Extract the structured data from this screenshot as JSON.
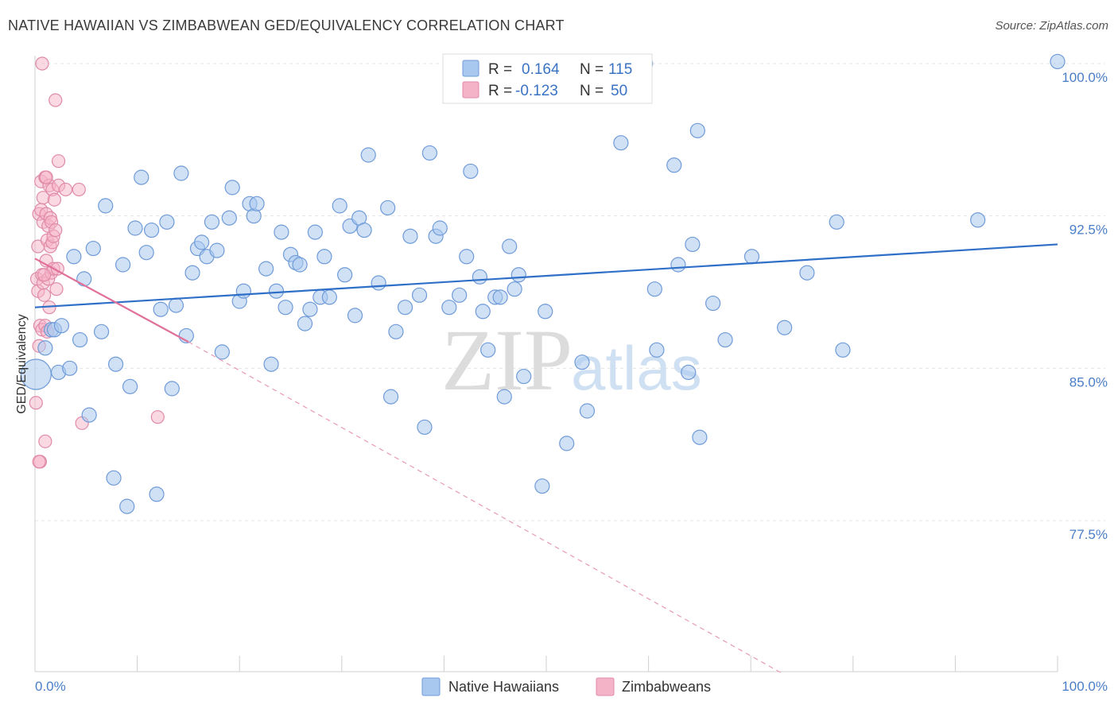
{
  "title": "NATIVE HAWAIIAN VS ZIMBABWEAN GED/EQUIVALENCY CORRELATION CHART",
  "source": "Source: ZipAtlas.com",
  "watermark": {
    "zip": "ZIP",
    "atlas": "atlas"
  },
  "legend": {
    "rows": [
      {
        "r_label": "R =",
        "r_value": "0.164",
        "n_label": "N =",
        "n_value": "115"
      },
      {
        "r_label": "R =",
        "r_value": "-0.123",
        "n_label": "N =",
        "n_value": "50"
      }
    ]
  },
  "colors": {
    "blue": "#2f6fc7",
    "blue_fill": "#a9c8ef",
    "pink": "#e0709a",
    "pink_fill": "#f5b3c8",
    "axis_text": "#4a7ec8"
  },
  "chart_data": {
    "type": "scatter",
    "xlabel": "",
    "ylabel": "GED/Equivalency",
    "xlim": [
      0,
      100
    ],
    "ylim": [
      70.0,
      101.0
    ],
    "x_tick_labels": [
      "0.0%",
      "100.0%"
    ],
    "y_ticks": [
      77.5,
      85.0,
      92.5,
      100.0
    ],
    "y_tick_labels": [
      "77.5%",
      "85.0%",
      "92.5%",
      "100.0%"
    ],
    "grid": "horizontal dashed",
    "legend_position": "top-center",
    "series": [
      {
        "name": "Native Hawaiians",
        "color": "#2f6fc7",
        "trend": {
          "x": [
            0,
            100
          ],
          "y": [
            88.0,
            91.1
          ]
        },
        "points": [
          [
            0.1,
            84.7
          ],
          [
            1.0,
            86.0
          ],
          [
            1.6,
            86.9
          ],
          [
            1.9,
            86.9
          ],
          [
            2.3,
            84.8
          ],
          [
            2.6,
            87.1
          ],
          [
            3.4,
            85.0
          ],
          [
            3.8,
            90.5
          ],
          [
            4.4,
            86.4
          ],
          [
            4.8,
            89.4
          ],
          [
            5.3,
            82.7
          ],
          [
            5.7,
            90.9
          ],
          [
            6.5,
            86.8
          ],
          [
            6.9,
            93.0
          ],
          [
            7.7,
            79.6
          ],
          [
            7.9,
            85.2
          ],
          [
            8.6,
            90.1
          ],
          [
            9.0,
            78.2
          ],
          [
            9.3,
            84.1
          ],
          [
            9.8,
            91.9
          ],
          [
            10.4,
            94.4
          ],
          [
            10.9,
            90.7
          ],
          [
            11.4,
            91.8
          ],
          [
            11.9,
            78.8
          ],
          [
            12.3,
            87.9
          ],
          [
            12.9,
            92.2
          ],
          [
            13.4,
            84.0
          ],
          [
            13.8,
            88.1
          ],
          [
            14.3,
            94.6
          ],
          [
            14.8,
            86.6
          ],
          [
            15.4,
            89.7
          ],
          [
            15.9,
            90.9
          ],
          [
            16.3,
            91.2
          ],
          [
            16.8,
            90.5
          ],
          [
            17.3,
            92.2
          ],
          [
            17.8,
            90.8
          ],
          [
            18.3,
            85.8
          ],
          [
            19.0,
            92.4
          ],
          [
            19.3,
            93.9
          ],
          [
            20.0,
            88.3
          ],
          [
            20.4,
            88.8
          ],
          [
            21.0,
            93.1
          ],
          [
            21.4,
            92.5
          ],
          [
            21.7,
            93.1
          ],
          [
            22.6,
            89.9
          ],
          [
            23.1,
            85.2
          ],
          [
            23.6,
            88.8
          ],
          [
            24.1,
            91.7
          ],
          [
            24.5,
            88.0
          ],
          [
            25.0,
            90.6
          ],
          [
            25.5,
            90.2
          ],
          [
            25.9,
            90.1
          ],
          [
            26.4,
            87.2
          ],
          [
            26.9,
            87.9
          ],
          [
            27.4,
            91.7
          ],
          [
            27.9,
            88.5
          ],
          [
            28.3,
            90.5
          ],
          [
            28.8,
            88.5
          ],
          [
            29.8,
            93.0
          ],
          [
            30.3,
            89.6
          ],
          [
            30.8,
            92.0
          ],
          [
            31.3,
            87.6
          ],
          [
            31.7,
            92.4
          ],
          [
            32.2,
            91.8
          ],
          [
            32.6,
            95.5
          ],
          [
            33.6,
            89.2
          ],
          [
            34.5,
            92.9
          ],
          [
            34.8,
            83.6
          ],
          [
            35.3,
            86.8
          ],
          [
            36.2,
            88.0
          ],
          [
            36.7,
            91.5
          ],
          [
            37.6,
            88.6
          ],
          [
            38.1,
            82.1
          ],
          [
            38.6,
            95.6
          ],
          [
            39.2,
            91.5
          ],
          [
            39.6,
            91.9
          ],
          [
            40.5,
            88.0
          ],
          [
            41.5,
            88.6
          ],
          [
            42.2,
            90.5
          ],
          [
            42.6,
            94.7
          ],
          [
            43.5,
            89.5
          ],
          [
            43.8,
            87.8
          ],
          [
            44.3,
            85.9
          ],
          [
            45.0,
            88.5
          ],
          [
            45.5,
            88.5
          ],
          [
            45.9,
            83.6
          ],
          [
            46.4,
            91.0
          ],
          [
            46.9,
            88.9
          ],
          [
            47.3,
            89.6
          ],
          [
            47.8,
            84.6
          ],
          [
            49.6,
            79.2
          ],
          [
            49.9,
            87.8
          ],
          [
            52.0,
            81.3
          ],
          [
            53.5,
            85.3
          ],
          [
            54.0,
            82.9
          ],
          [
            57.3,
            96.1
          ],
          [
            59.7,
            100.0
          ],
          [
            60.6,
            88.9
          ],
          [
            60.8,
            85.9
          ],
          [
            62.5,
            95.0
          ],
          [
            62.9,
            90.1
          ],
          [
            63.9,
            84.8
          ],
          [
            64.3,
            91.1
          ],
          [
            64.8,
            96.7
          ],
          [
            65.0,
            81.6
          ],
          [
            66.3,
            88.2
          ],
          [
            67.5,
            86.4
          ],
          [
            70.1,
            90.5
          ],
          [
            73.3,
            87.0
          ],
          [
            75.5,
            89.7
          ],
          [
            78.4,
            92.2
          ],
          [
            79.0,
            85.9
          ],
          [
            92.2,
            92.3
          ],
          [
            100.0,
            100.1
          ]
        ]
      },
      {
        "name": "Zimbabweans",
        "color": "#e0709a",
        "trend": {
          "x": [
            0,
            15
          ],
          "y": [
            90.4,
            86.3
          ]
        },
        "trend_extension": {
          "x": [
            15,
            73
          ],
          "y": [
            86.3,
            70.0
          ]
        },
        "points": [
          [
            0.1,
            83.3
          ],
          [
            0.2,
            89.4
          ],
          [
            0.3,
            88.8
          ],
          [
            0.3,
            91.0
          ],
          [
            0.4,
            92.6
          ],
          [
            0.4,
            86.1
          ],
          [
            0.5,
            80.4
          ],
          [
            0.5,
            87.1
          ],
          [
            0.6,
            94.2
          ],
          [
            0.6,
            92.8
          ],
          [
            0.7,
            100.0
          ],
          [
            0.7,
            89.6
          ],
          [
            0.7,
            86.9
          ],
          [
            0.8,
            93.4
          ],
          [
            0.8,
            92.2
          ],
          [
            0.8,
            89.2
          ],
          [
            0.9,
            88.6
          ],
          [
            1.0,
            81.4
          ],
          [
            1.0,
            87.1
          ],
          [
            1.0,
            94.4
          ],
          [
            1.1,
            92.6
          ],
          [
            1.1,
            90.3
          ],
          [
            1.2,
            91.3
          ],
          [
            1.2,
            86.8
          ],
          [
            1.3,
            89.4
          ],
          [
            1.3,
            92.0
          ],
          [
            1.4,
            94.0
          ],
          [
            1.4,
            88.0
          ],
          [
            1.5,
            92.4
          ],
          [
            1.5,
            91.0
          ],
          [
            1.6,
            92.2
          ],
          [
            1.6,
            89.7
          ],
          [
            1.7,
            91.2
          ],
          [
            1.7,
            93.8
          ],
          [
            1.8,
            91.5
          ],
          [
            1.8,
            89.9
          ],
          [
            1.9,
            93.3
          ],
          [
            2.0,
            91.8
          ],
          [
            2.0,
            98.2
          ],
          [
            2.1,
            88.9
          ],
          [
            2.2,
            89.9
          ],
          [
            2.3,
            94.0
          ],
          [
            2.3,
            95.2
          ],
          [
            3.0,
            93.8
          ],
          [
            4.3,
            93.8
          ],
          [
            4.6,
            82.3
          ],
          [
            12.0,
            82.6
          ],
          [
            0.4,
            80.4
          ],
          [
            1.1,
            94.4
          ],
          [
            0.9,
            89.6
          ]
        ]
      }
    ]
  },
  "bottom_legend": [
    "Native Hawaiians",
    "Zimbabweans"
  ]
}
